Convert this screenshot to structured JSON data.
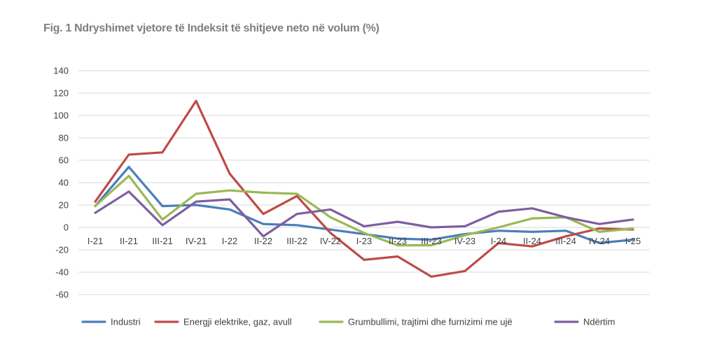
{
  "chart_data": {
    "type": "line",
    "title": "Fig. 1 Ndryshimet vjetore të Indeksit të shitjeve neto në volum (%)",
    "xlabel": "",
    "ylabel": "",
    "ylim": [
      -60,
      140
    ],
    "yticks": [
      140,
      120,
      100,
      80,
      60,
      40,
      20,
      0,
      -20,
      -40,
      -60
    ],
    "grid": true,
    "legend_position": "bottom",
    "categories": [
      "I-21",
      "II-21",
      "III-21",
      "IV-21",
      "I-22",
      "II-22",
      "III-22",
      "IV-22",
      "I-23",
      "II-23",
      "III-23",
      "IV-23",
      "I-24",
      "II-24",
      "III-24",
      "IV-24",
      "I-25"
    ],
    "series": [
      {
        "name": "Industri",
        "color": "#4a7ebb",
        "values": [
          19,
          54,
          19,
          20,
          16,
          3,
          2,
          -2,
          -6,
          -10,
          -11,
          -6,
          -3,
          -4,
          -3,
          -14,
          -11
        ]
      },
      {
        "name": "Energji elektrike, gaz, avull",
        "color": "#be4b48",
        "values": [
          23,
          65,
          67,
          113,
          48,
          12,
          28,
          -5,
          -29,
          -26,
          -44,
          -39,
          -14,
          -17,
          -8,
          -1,
          -2
        ]
      },
      {
        "name": "Grumbullimi, trajtimi dhe furnizimi me ujë",
        "color": "#98b954",
        "values": [
          19,
          46,
          7,
          30,
          33,
          31,
          30,
          9,
          -5,
          -16,
          -16,
          -7,
          0,
          8,
          9,
          -4,
          -1
        ]
      },
      {
        "name": "Ndërtim",
        "color": "#7d5fa0",
        "values": [
          13,
          32,
          2,
          23,
          25,
          -8,
          12,
          16,
          1,
          5,
          0,
          1,
          14,
          17,
          9,
          3,
          7
        ]
      }
    ]
  }
}
